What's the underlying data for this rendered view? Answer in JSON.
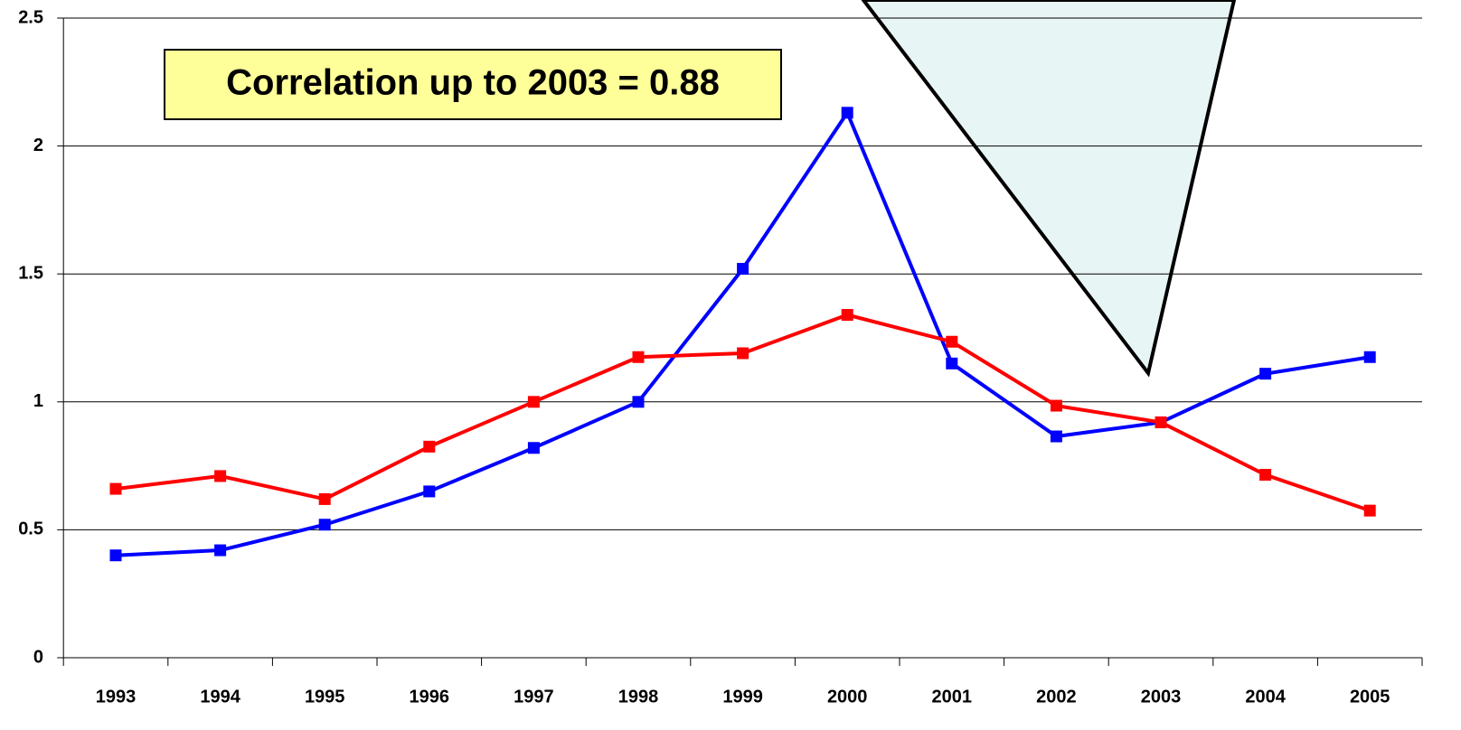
{
  "chart_data": {
    "type": "line",
    "categories": [
      "1993",
      "1994",
      "1995",
      "1996",
      "1997",
      "1998",
      "1999",
      "2000",
      "2001",
      "2002",
      "2003",
      "2004",
      "2005"
    ],
    "series": [
      {
        "color": "#0000ff",
        "values": [
          0.4,
          0.42,
          0.52,
          0.65,
          0.82,
          1.0,
          1.52,
          2.13,
          1.15,
          0.865,
          0.92,
          1.11,
          1.175
        ]
      },
      {
        "color": "#ff0000",
        "values": [
          0.66,
          0.71,
          0.62,
          0.825,
          1.0,
          1.175,
          1.19,
          1.34,
          1.235,
          0.985,
          0.92,
          0.715,
          0.575
        ]
      }
    ],
    "ylim": [
      0,
      2.5
    ],
    "yticks": [
      0,
      0.5,
      1,
      1.5,
      2,
      2.5
    ],
    "grid": true,
    "annotation": "Correlation up to 2003  = 0.88"
  }
}
